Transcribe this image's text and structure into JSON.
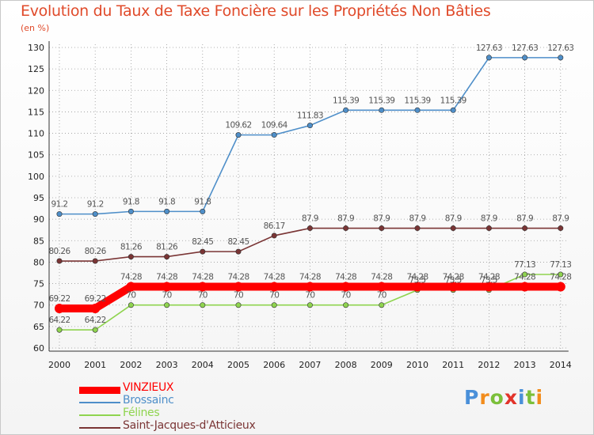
{
  "title": "Evolution du Taux de Taxe Foncière sur les Propriétés Non Bâties",
  "subtitle": "(en %)",
  "logo": "Proxiti",
  "colors": {
    "title": "#e04a2a",
    "grid": "#9a9a9a",
    "brossainc": "#4f8fc9",
    "felines": "#8fd44f",
    "saint_jacques": "#7a3535",
    "vinzieux": "#ff0000"
  },
  "chart_data": {
    "type": "line",
    "title": "Evolution du Taux de Taxe Foncière sur les Propriétés Non Bâties",
    "ylabel": "(en %)",
    "xlabel": "",
    "ylim": [
      60,
      130
    ],
    "yticks": [
      60,
      65,
      70,
      75,
      80,
      85,
      90,
      95,
      100,
      105,
      110,
      115,
      120,
      125,
      130
    ],
    "categories": [
      "2000",
      "2001",
      "2002",
      "2003",
      "2004",
      "2005",
      "2006",
      "2007",
      "2008",
      "2009",
      "2010",
      "2011",
      "2012",
      "2013",
      "2014"
    ],
    "grid": true,
    "legend_position": "bottom-left",
    "series": [
      {
        "name": "Brossainc",
        "key": "brossainc",
        "values": [
          91.2,
          91.2,
          91.8,
          91.8,
          91.8,
          109.62,
          109.64,
          111.83,
          115.39,
          115.39,
          115.39,
          115.39,
          127.63,
          127.63,
          127.63
        ],
        "labels": [
          "91.2",
          "91.2",
          "91.8",
          "91.8",
          "91.8",
          "109.62",
          "109.64",
          "111.83",
          "115.39",
          "115.39",
          "115.39",
          "115.39",
          "127.63",
          "127.63",
          "127.63"
        ]
      },
      {
        "name": "Saint-Jacques-d'Atticieux",
        "key": "saint_jacques",
        "values": [
          80.26,
          80.26,
          81.26,
          81.26,
          82.45,
          82.45,
          86.17,
          87.9,
          87.9,
          87.9,
          87.9,
          87.9,
          87.9,
          87.9,
          87.9
        ],
        "labels": [
          "80.26",
          "80.26",
          "81.26",
          "81.26",
          "82.45",
          "82.45",
          "86.17",
          "87.9",
          "87.9",
          "87.9",
          "87.9",
          "87.9",
          "87.9",
          "87.9",
          "87.9"
        ]
      },
      {
        "name": "Félines",
        "key": "felines",
        "values": [
          64.22,
          64.22,
          70,
          70,
          70,
          70,
          70,
          70,
          70,
          70,
          73.5,
          73.5,
          73.5,
          77.13,
          77.13
        ],
        "labels": [
          "64.22",
          "64.22",
          "70",
          "70",
          "70",
          "70",
          "70",
          "70",
          "70",
          "70",
          "73.5",
          "73.5",
          "73.5",
          "77.13",
          "77.13"
        ]
      },
      {
        "name": "VINZIEUX",
        "key": "vinzieux",
        "values": [
          69.22,
          69.22,
          74.28,
          74.28,
          74.28,
          74.28,
          74.28,
          74.28,
          74.28,
          74.28,
          74.28,
          74.28,
          74.28,
          74.28,
          74.28
        ],
        "labels": [
          "69.22",
          "69.22",
          "74.28",
          "74.28",
          "74.28",
          "74.28",
          "74.28",
          "74.28",
          "74.28",
          "74.28",
          "74.28",
          "74.28",
          "74.28",
          "74.28",
          "74.28"
        ]
      }
    ],
    "legend": [
      {
        "name": "VINZIEUX",
        "key": "vinzieux"
      },
      {
        "name": "Brossainc",
        "key": "brossainc"
      },
      {
        "name": "Félines",
        "key": "felines"
      },
      {
        "name": "Saint-Jacques-d'Atticieux",
        "key": "saint_jacques"
      }
    ]
  }
}
